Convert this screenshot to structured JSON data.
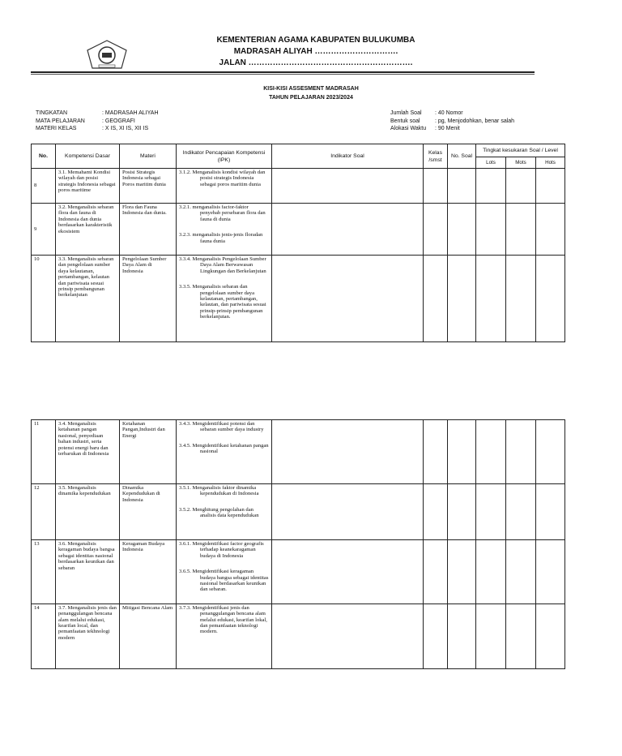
{
  "header": {
    "line1": "KEMENTERIAN AGAMA KABUPATEN BULUKUMBA",
    "line2": "MADRASAH ALIYAH ………………………….",
    "line3": "JALAN ……………………………………………………."
  },
  "title": {
    "line1": "KISI-KISI ASSESMENT MADRASAH",
    "line2": "TAHUN PELAJARAN 2023/2024"
  },
  "meta_left": [
    {
      "label": "TINGKATAN",
      "value": ": MADRASAH ALIYAH"
    },
    {
      "label": "MATA PELAJARAN",
      "value": ": GEOGRAFI"
    },
    {
      "label": "MATERI KELAS",
      "value": ": X IS, XI IS, XII IS"
    }
  ],
  "meta_right": [
    {
      "label": "Jumlah Soal",
      "value": ": 40 Nomor"
    },
    {
      "label": "Bentuk soal",
      "value": ": pg, Menjodohkan, benar salah"
    },
    {
      "label": "Alokasi Waktu",
      "value": ":  90 Menit"
    }
  ],
  "columns": {
    "no": "No.",
    "kd": "Kompetensi Dasar",
    "materi": "Materi",
    "ipk": "Indikator Pencapaian Kompetensi (IPK)",
    "indikator": "Indikator Soal",
    "kelas": "Kelas /smst",
    "nosoal": "No. Soal",
    "level": "Tingkat kesukaran Soal / Level",
    "lots": "Lots",
    "mots": "Mots",
    "hots": "Hots"
  },
  "rows1": [
    {
      "no": "8",
      "kd": "3.1. Memahami Kondisi wilayah dan posisi strategis Indonesia sebagai poros maritime",
      "materi": "Posisi Strategis Indonesia sebagai Poros maritim dunia",
      "ipk": [
        "3.1.2. Menganalisis kondisi wilayah dan posisi strategis Indonesia sebagai poros maritim dunia"
      ]
    },
    {
      "no": "9",
      "kd": "3.2. Menganalisis sebaran flora dan fauna di Indonesia dan dunia berdasarkan karakteristik ekosistem",
      "materi": "Flora dan Fauna Indonesia dan dunia.",
      "ipk": [
        "3.2.1. menganalisis factor-faktor penyebab persebaran flora dan fauna di  dunia",
        "3.2.3. menganalisis jenis-jenis floradan fauna dunia"
      ]
    },
    {
      "no": "10",
      "kd": "3.3. Menganalisis sebaran dan pengelolaan sumber daya kelautanan, pertambangan, kelautan dan pariwisata sesuai prinsip pembangunan berkelanjutan",
      "materi": "Pengelolaan Sumber Daya Alam di Indonesia",
      "ipk": [
        "3.3.4. Menganalisis Pengelolaan Sumber Daya Alam Berwawasan Lingkungan dan Berkelanjutan",
        "3.3.5. Menganalisis sebaran dan pengelolaan sumber daya kelautanan, pertambangan, kelautan, dan pariwisata sesuai prinsip-prinsip pembangunan berkelanjutan."
      ]
    }
  ],
  "rows2": [
    {
      "no": "11",
      "kd": "3.4. Menganalisis ketahanan pangan nasional, penyediaan bahan industri, serta potensi energi baru dan terbarukan di Indonesia",
      "materi": "Ketahanan Pangan,Industri dan Energi",
      "ipk": [
        "3.4.3. Mengidentifikasi potensi dan sebaran sumber daya industry",
        "3.4.5. Mengidentifikasi ketahanan pangan nasional"
      ]
    },
    {
      "no": "12",
      "kd": "3.5. Menganalisis dinamika kependudukan",
      "materi": "Dinamika Kependudukan di Indonesia",
      "ipk": [
        "3.5.1. Menganalisis faktor dinamika kependudukan di Indonesia",
        "3.5.2. Menghitung pengolahan dan analisis data kependudukan"
      ]
    },
    {
      "no": "13",
      "kd": "3.6. Menganalisis keragaman budaya bangsa sebagai identitas nasional berdasarkan keunikan dan sebaran",
      "materi": "Keragaman Budaya Indonesia",
      "ipk": [
        "3.6.1. Mengidentifikasi factor geografis terhadap keanekaragaman budaya di Indonesia",
        "3.6.5. Mengidentifikasi keragaman budaya bangsa sebagai identitas nasional berdasarkan keunikan dan sebaran."
      ]
    },
    {
      "no": "14",
      "kd": "3.7. Menganalisis jenis dan penanggulangan bencana alam melalui edukasi, kearifan local, dan pemanfaatan tekhnologi modern",
      "materi": "Mitigasi Bencana Alam",
      "ipk": [
        "3.7.3. Mengidentifikasi jenis dan penanggulangan bencana alam melalui edukasi, kearifan lokal, dan pemanfaatan teknologi modern."
      ]
    }
  ]
}
